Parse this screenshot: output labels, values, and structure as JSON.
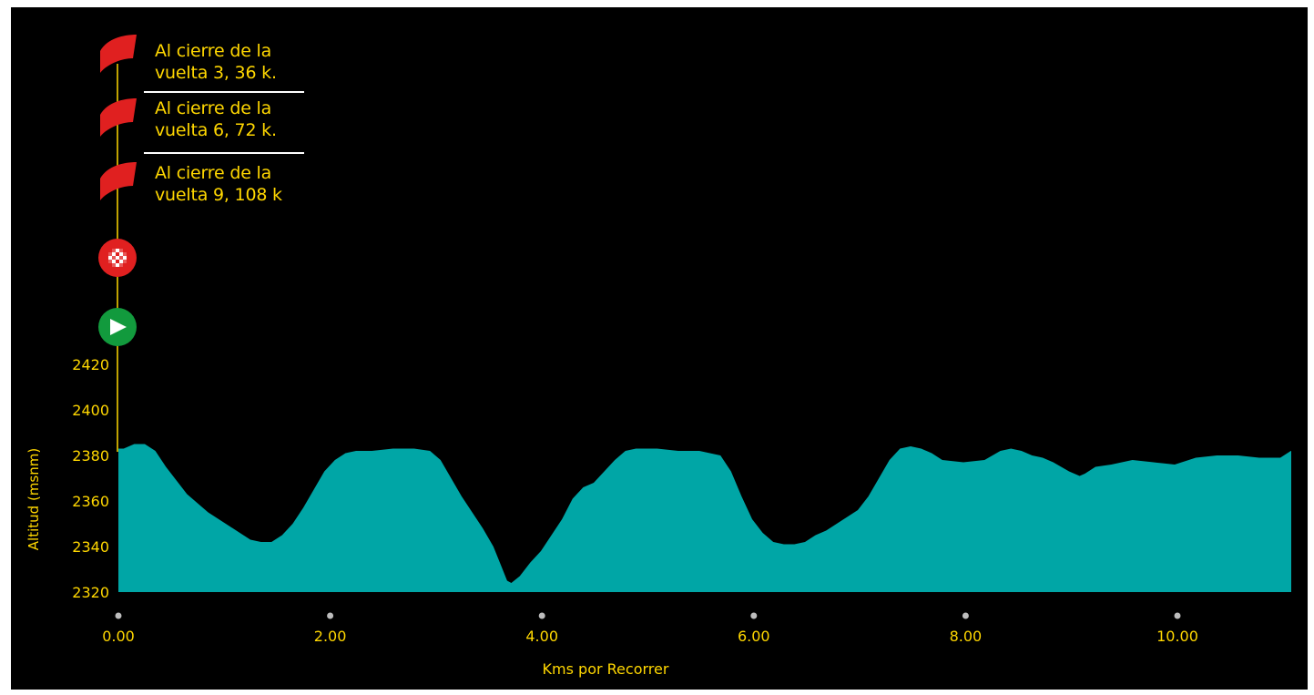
{
  "chart_data": {
    "type": "area",
    "xlabel": "Kms por Recorrer",
    "ylabel": "Altitud (msnm)",
    "xlim": [
      0,
      11.1
    ],
    "ylim": [
      2320,
      2425
    ],
    "x_ticks": [
      "0.00",
      "2.00",
      "4.00",
      "6.00",
      "8.00",
      "10.00"
    ],
    "y_ticks": [
      "2320",
      "2340",
      "2360",
      "2380",
      "2400",
      "2420"
    ],
    "grid": false,
    "legend": "none",
    "fill_color": "#00a6a6",
    "text_color": "#ffd700",
    "background_color": "#000000",
    "series": [
      {
        "x": [
          0.0,
          0.05,
          0.15,
          0.25,
          0.35,
          0.45,
          0.55,
          0.65,
          0.75,
          0.85,
          0.95,
          1.05,
          1.15,
          1.25,
          1.35,
          1.45,
          1.55,
          1.65,
          1.75,
          1.85,
          1.95,
          2.05,
          2.15,
          2.25,
          2.4,
          2.6,
          2.8,
          2.95,
          3.05,
          3.15,
          3.25,
          3.35,
          3.45,
          3.55,
          3.62,
          3.68,
          3.72,
          3.8,
          3.9,
          4.0,
          4.1,
          4.2,
          4.3,
          4.4,
          4.5,
          4.6,
          4.7,
          4.8,
          4.9,
          5.1,
          5.3,
          5.5,
          5.7,
          5.8,
          5.9,
          6.0,
          6.1,
          6.2,
          6.3,
          6.4,
          6.5,
          6.6,
          6.7,
          6.8,
          6.9,
          7.0,
          7.1,
          7.2,
          7.3,
          7.4,
          7.5,
          7.6,
          7.7,
          7.8,
          8.0,
          8.2,
          8.35,
          8.45,
          8.55,
          8.65,
          8.75,
          8.85,
          9.0,
          9.1,
          9.15,
          9.25,
          9.4,
          9.6,
          9.8,
          10.0,
          10.2,
          10.4,
          10.6,
          10.8,
          11.0,
          11.1
        ],
        "values": [
          2383,
          2383,
          2385,
          2385,
          2382,
          2375,
          2369,
          2363,
          2359,
          2355,
          2352,
          2349,
          2346,
          2343,
          2342,
          2342,
          2345,
          2350,
          2357,
          2365,
          2373,
          2378,
          2381,
          2382,
          2382,
          2383,
          2383,
          2382,
          2378,
          2370,
          2362,
          2355,
          2348,
          2340,
          2332,
          2325,
          2324,
          2327,
          2333,
          2338,
          2345,
          2352,
          2361,
          2366,
          2368,
          2373,
          2378,
          2382,
          2383,
          2383,
          2382,
          2382,
          2380,
          2373,
          2362,
          2352,
          2346,
          2342,
          2341,
          2341,
          2342,
          2345,
          2347,
          2350,
          2353,
          2356,
          2362,
          2370,
          2378,
          2383,
          2384,
          2383,
          2381,
          2378,
          2377,
          2378,
          2382,
          2383,
          2382,
          2380,
          2379,
          2377,
          2373,
          2371,
          2372,
          2375,
          2376,
          2378,
          2377,
          2376,
          2379,
          2380,
          2380,
          2379,
          2379,
          2382
        ]
      }
    ],
    "waypoints": [
      {
        "icon": "red-flag-icon",
        "line1": "Al cierre de la",
        "line2": "vuelta 3, 36 k."
      },
      {
        "icon": "red-flag-icon",
        "line1": "Al cierre de la",
        "line2": "vuelta 6, 72  k."
      },
      {
        "icon": "red-flag-icon",
        "line1": "Al cierre de la",
        "line2": "vuelta 9, 108 k"
      },
      {
        "icon": "checkered-finish-icon"
      },
      {
        "icon": "green-start-play-icon"
      }
    ]
  }
}
